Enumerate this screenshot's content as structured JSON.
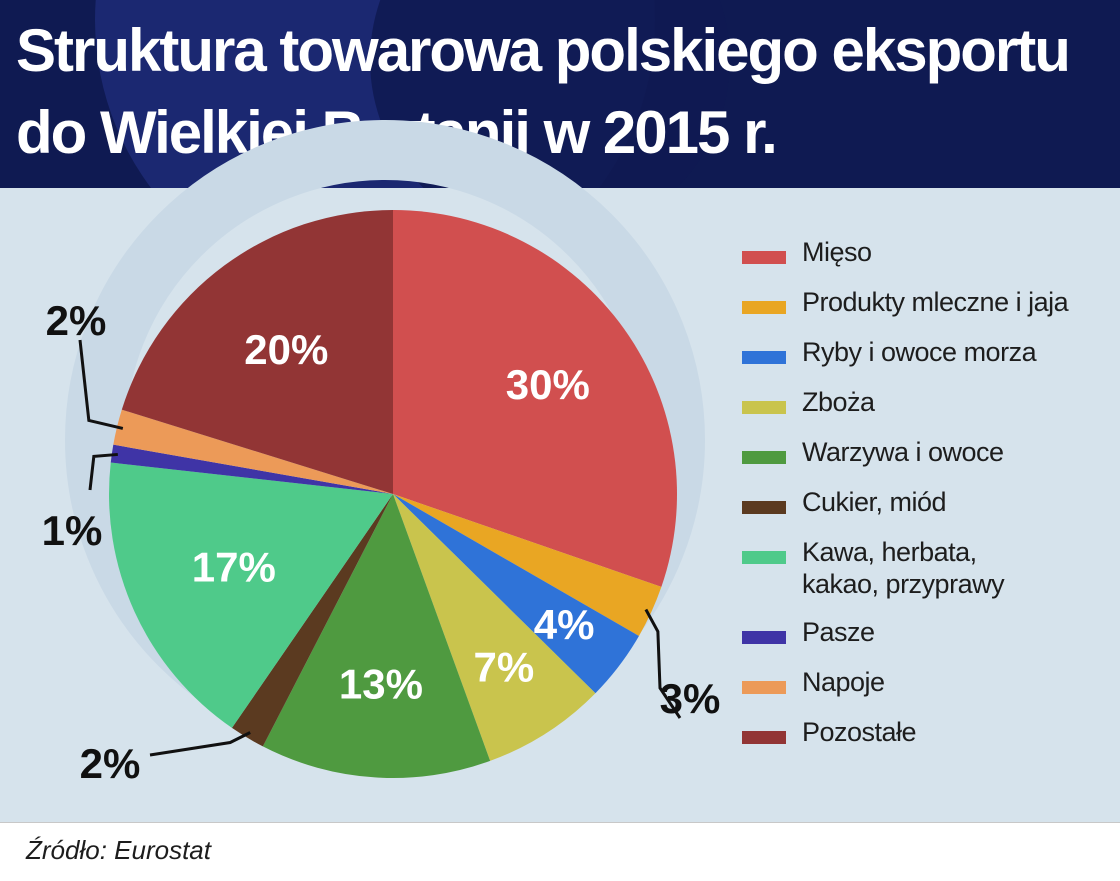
{
  "header": {
    "title": "Struktura towarowa polskiego eksportu\ndo Wielkiej Brytanii w 2015 r."
  },
  "chart_data": {
    "type": "pie",
    "title": "Struktura towarowa polskiego eksportu do Wielkiej Brytanii w 2015 r.",
    "start_angle_deg": 0,
    "direction": "clockwise",
    "categories": [
      "Mięso",
      "Produkty mleczne i jaja",
      "Ryby i owoce morza",
      "Zboża",
      "Warzywa i owoce",
      "Cukier, miód",
      "Kawa, herbata,\nkakao, przyprawy",
      "Pasze",
      "Napoje",
      "Pozostałe"
    ],
    "values": [
      30,
      3,
      4,
      7,
      13,
      2,
      17,
      1,
      2,
      20
    ],
    "labels": [
      "30%",
      "3%",
      "4%",
      "7%",
      "13%",
      "2%",
      "17%",
      "1%",
      "2%",
      "20%"
    ],
    "colors": [
      "#d14f4f",
      "#e9a623",
      "#2f73d8",
      "#c9c44d",
      "#4f9a40",
      "#5b3a20",
      "#4fca8a",
      "#3f34a6",
      "#ec9a58",
      "#923535"
    ],
    "label_placement": [
      "inside",
      "outside",
      "inside",
      "inside",
      "inside",
      "outside",
      "inside",
      "outside",
      "outside",
      "inside"
    ],
    "legend_position": "right"
  },
  "source": "Źródło: Eurostat"
}
